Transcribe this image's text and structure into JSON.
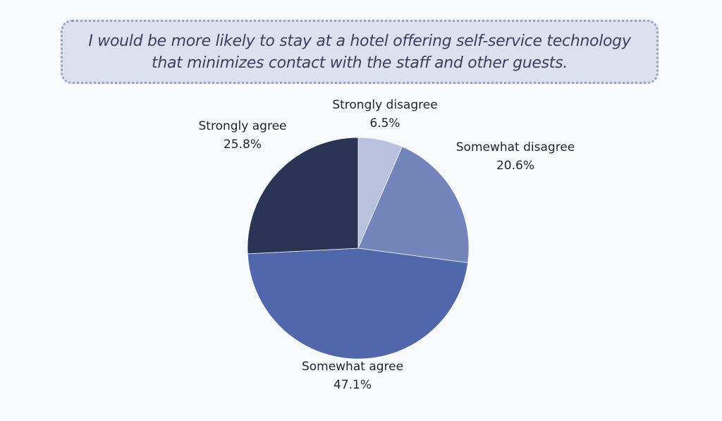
{
  "title": {
    "line1": "I would be more likely to stay at a hotel offering self-service technology",
    "line2": "that minimizes contact with the staff and other guests."
  },
  "labels": {
    "strongly_disagree": {
      "name": "Strongly disagree",
      "value": "6.5%"
    },
    "somewhat_disagree": {
      "name": "Somewhat disagree",
      "value": "20.6%"
    },
    "somewhat_agree": {
      "name": "Somewhat agree",
      "value": "47.1%"
    },
    "strongly_agree": {
      "name": "Strongly agree",
      "value": "25.8%"
    }
  },
  "chart_data": {
    "type": "pie",
    "title": "I would be more likely to stay at a hotel offering self-service technology that minimizes contact with the staff and other guests.",
    "categories": [
      "Strongly disagree",
      "Somewhat disagree",
      "Somewhat agree",
      "Strongly agree"
    ],
    "values": [
      6.5,
      20.6,
      47.1,
      25.8
    ],
    "colors": [
      "#b8c1de",
      "#7385bb",
      "#5068ab",
      "#2a3454"
    ],
    "start_angle": "12 o'clock, clockwise",
    "legend": "none (direct labels)"
  }
}
